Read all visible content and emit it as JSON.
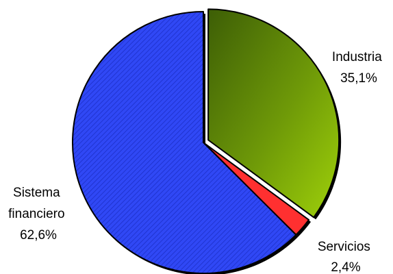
{
  "chart_data": {
    "type": "pie",
    "title": "",
    "slices": [
      {
        "name": "Industria",
        "value": 35.1,
        "display": "35,1%",
        "color": "#8fbf10",
        "color_dark": "#466a05",
        "pattern": "gradient"
      },
      {
        "name": "Servicios",
        "value": 2.4,
        "display": "2,4%",
        "color": "#ff3030",
        "color_dark": "#d01010",
        "pattern": "solid"
      },
      {
        "name": "Sistema financiero",
        "value": 62.6,
        "display": "62,6%",
        "color": "#2c44f4",
        "color_dark": "#1a2ab0",
        "pattern": "hatched"
      }
    ],
    "label_lines": {
      "Industria": [
        "Industria",
        "35,1%"
      ],
      "Servicios": [
        "Servicios",
        "2,4%"
      ],
      "Sistema financiero": [
        "Sistema",
        "financiero",
        "62,6%"
      ]
    },
    "exploded": "Industria",
    "legend": "none"
  }
}
